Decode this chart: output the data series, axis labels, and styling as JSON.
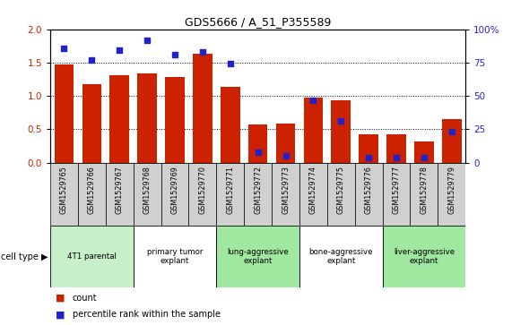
{
  "title": "GDS5666 / A_51_P355589",
  "samples": [
    "GSM1529765",
    "GSM1529766",
    "GSM1529767",
    "GSM1529768",
    "GSM1529769",
    "GSM1529770",
    "GSM1529771",
    "GSM1529772",
    "GSM1529773",
    "GSM1529774",
    "GSM1529775",
    "GSM1529776",
    "GSM1529777",
    "GSM1529778",
    "GSM1529779"
  ],
  "count_values": [
    1.47,
    1.18,
    1.31,
    1.34,
    1.29,
    1.63,
    1.13,
    0.57,
    0.58,
    0.97,
    0.93,
    0.42,
    0.42,
    0.31,
    0.65
  ],
  "percentile_values": [
    86,
    77,
    84,
    92,
    81,
    83,
    74,
    8,
    5,
    47,
    31,
    4,
    4,
    4,
    23
  ],
  "cell_groups": [
    {
      "label": "4T1 parental",
      "start": 0,
      "end": 2,
      "color": "#c8f0c8"
    },
    {
      "label": "primary tumor\nexplant",
      "start": 3,
      "end": 5,
      "color": "#ffffff"
    },
    {
      "label": "lung-aggressive\nexplant",
      "start": 6,
      "end": 8,
      "color": "#a0e8a0"
    },
    {
      "label": "bone-aggressive\nexplant",
      "start": 9,
      "end": 11,
      "color": "#ffffff"
    },
    {
      "label": "liver-aggressive\nexplant",
      "start": 12,
      "end": 14,
      "color": "#a0e8a0"
    }
  ],
  "ylim_left": [
    0,
    2.0
  ],
  "ylim_right": [
    0,
    100
  ],
  "yticks_left": [
    0,
    0.5,
    1.0,
    1.5,
    2.0
  ],
  "yticks_right": [
    0,
    25,
    50,
    75,
    100
  ],
  "bar_color": "#cc2200",
  "dot_color": "#2222cc",
  "legend_count": "count",
  "legend_percentile": "percentile rank within the sample",
  "cell_type_label": "cell type"
}
